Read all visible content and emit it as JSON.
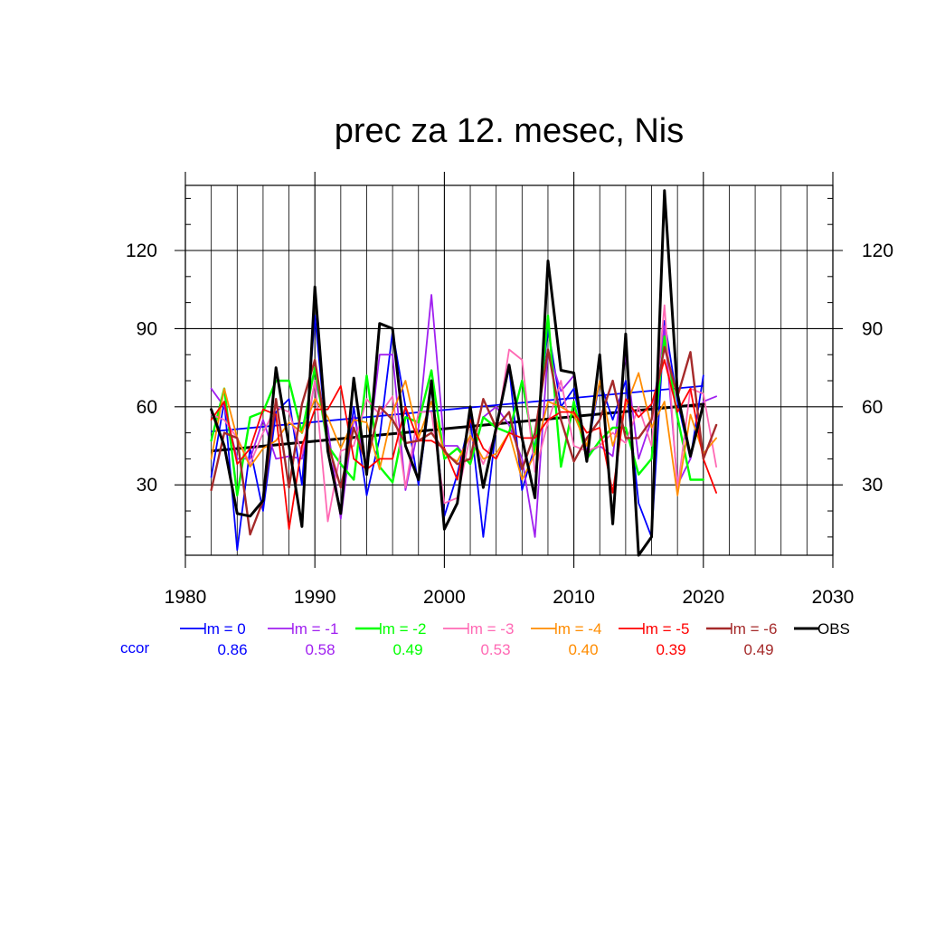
{
  "chart_data": {
    "type": "line",
    "title": "prec za 12. mesec, Nis",
    "xlabel": "",
    "ylabel": "",
    "xlim": [
      1980,
      2030
    ],
    "ylim": [
      3,
      145
    ],
    "x_ticks": [
      "1980",
      "1990",
      "2000",
      "2010",
      "2020",
      "2030"
    ],
    "y_ticks": [
      "30",
      "60",
      "90",
      "120"
    ],
    "grid": true,
    "x": [
      1982,
      1983,
      1984,
      1985,
      1986,
      1987,
      1988,
      1989,
      1990,
      1991,
      1992,
      1993,
      1994,
      1995,
      1996,
      1997,
      1998,
      1999,
      2000,
      2001,
      2002,
      2003,
      2004,
      2005,
      2006,
      2007,
      2008,
      2009,
      2010,
      2011,
      2012,
      2013,
      2014,
      2015,
      2016,
      2017,
      2018,
      2019,
      2020,
      2021
    ],
    "series": [
      {
        "name": "lm = 0",
        "color": "#0000ff",
        "width": 1.8,
        "values": [
          33,
          62,
          5,
          44,
          20,
          58,
          63,
          30,
          95,
          43,
          20,
          60,
          26,
          48,
          89,
          60,
          30,
          68,
          18,
          34,
          56,
          10,
          52,
          75,
          28,
          45,
          90,
          60,
          67,
          42,
          70,
          55,
          70,
          23,
          10,
          93,
          62,
          40,
          72,
          null
        ]
      },
      {
        "name": "lm = -1",
        "color": "#a020f0",
        "width": 1.8,
        "values": [
          67,
          60,
          40,
          40,
          55,
          40,
          41,
          40,
          70,
          52,
          17,
          56,
          38,
          80,
          80,
          28,
          52,
          103,
          45,
          45,
          38,
          56,
          60,
          53,
          40,
          10,
          82,
          66,
          72,
          42,
          45,
          41,
          80,
          40,
          55,
          91,
          30,
          40,
          62,
          64
        ]
      },
      {
        "name": "lm = -2",
        "color": "#00ff00",
        "width": 2.4,
        "values": [
          47,
          67,
          26,
          56,
          58,
          70,
          70,
          50,
          75,
          45,
          38,
          32,
          72,
          37,
          31,
          56,
          54,
          74,
          40,
          44,
          38,
          56,
          52,
          50,
          70,
          42,
          95,
          37,
          62,
          40,
          47,
          52,
          52,
          34,
          40,
          87,
          56,
          32,
          32,
          null
        ]
      },
      {
        "name": "lm = -3",
        "color": "#ff69b4",
        "width": 1.8,
        "values": [
          57,
          55,
          48,
          38,
          50,
          60,
          58,
          42,
          70,
          16,
          43,
          45,
          63,
          57,
          64,
          29,
          58,
          58,
          23,
          25,
          49,
          38,
          50,
          82,
          78,
          35,
          54,
          70,
          45,
          43,
          45,
          50,
          46,
          60,
          45,
          99,
          28,
          67,
          65,
          37
        ]
      },
      {
        "name": "lm = -4",
        "color": "#ff8c00",
        "width": 1.8,
        "values": [
          40,
          67,
          48,
          37,
          44,
          47,
          54,
          50,
          63,
          56,
          44,
          55,
          54,
          36,
          58,
          70,
          48,
          62,
          42,
          39,
          49,
          40,
          42,
          50,
          32,
          42,
          62,
          60,
          57,
          45,
          70,
          45,
          60,
          73,
          52,
          62,
          26,
          57,
          42,
          48
        ]
      },
      {
        "name": "lm = -5",
        "color": "#ff0000",
        "width": 1.8,
        "values": [
          55,
          62,
          38,
          44,
          59,
          57,
          13,
          45,
          59,
          59,
          68,
          40,
          36,
          40,
          40,
          60,
          47,
          47,
          44,
          32,
          55,
          44,
          40,
          50,
          48,
          48,
          55,
          58,
          58,
          50,
          52,
          27,
          63,
          56,
          61,
          78,
          58,
          67,
          40,
          27
        ]
      },
      {
        "name": "lm = -6",
        "color": "#a52a2a",
        "width": 2.4,
        "values": [
          28,
          50,
          48,
          11,
          24,
          63,
          29,
          61,
          78,
          46,
          29,
          52,
          38,
          60,
          55,
          46,
          47,
          50,
          43,
          38,
          40,
          63,
          52,
          58,
          36,
          50,
          82,
          55,
          39,
          48,
          55,
          70,
          48,
          48,
          55,
          83,
          64,
          81,
          40,
          53
        ]
      },
      {
        "name": "OBS",
        "color": "#000000",
        "width": 3.0,
        "values": [
          59,
          45,
          19,
          18,
          24,
          75,
          45,
          14,
          106,
          43,
          19,
          71,
          34,
          92,
          90,
          45,
          32,
          70,
          13,
          23,
          60,
          29,
          52,
          76,
          48,
          25,
          116,
          74,
          73,
          39,
          80,
          15,
          88,
          3,
          10,
          143,
          65,
          41,
          61,
          null
        ]
      }
    ],
    "trend_lines": [
      {
        "series": "lm = 0",
        "color": "#0000ff",
        "width": 1.8,
        "x": [
          1982,
          2020
        ],
        "y": [
          50.5,
          68
        ]
      },
      {
        "series": "OBS",
        "color": "#000000",
        "width": 3.0,
        "x": [
          1982,
          2020
        ],
        "y": [
          43,
          61
        ]
      }
    ],
    "legend": {
      "placement": "bottom",
      "ccor_label": "ccor",
      "ccor_label_color": "#0000ff",
      "entries": [
        {
          "label": "lm = 0",
          "ccor": "0.86",
          "color": "#0000ff"
        },
        {
          "label": "lm = -1",
          "ccor": "0.58",
          "color": "#a020f0"
        },
        {
          "label": "lm = -2",
          "ccor": "0.49",
          "color": "#00ff00"
        },
        {
          "label": "lm = -3",
          "ccor": "0.53",
          "color": "#ff69b4"
        },
        {
          "label": "lm = -4",
          "ccor": "0.40",
          "color": "#ff8c00"
        },
        {
          "label": "lm = -5",
          "ccor": "0.39",
          "color": "#ff0000"
        },
        {
          "label": "lm = -6",
          "ccor": "0.49",
          "color": "#a52a2a"
        },
        {
          "label": "OBS",
          "ccor": "",
          "color": "#000000"
        }
      ]
    }
  }
}
